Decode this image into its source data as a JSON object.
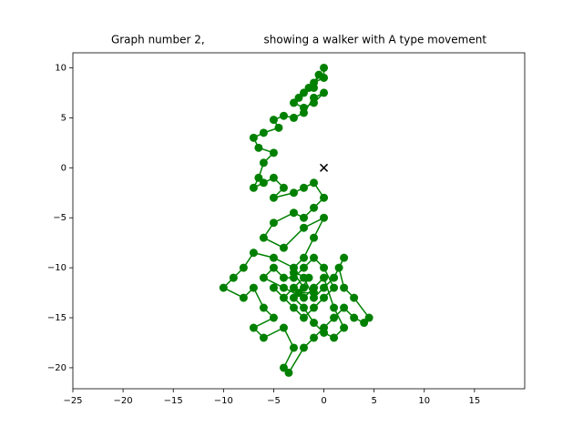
{
  "chart_data": {
    "type": "scatter",
    "title": "Graph number 2,                 showing a walker with A type movement",
    "xlim": [
      -25,
      20
    ],
    "ylim": [
      -22.1,
      11.5
    ],
    "xticks": [
      {
        "value": -25,
        "label": "−25"
      },
      {
        "value": -20,
        "label": "−20"
      },
      {
        "value": -15,
        "label": "−15"
      },
      {
        "value": -10,
        "label": "−10"
      },
      {
        "value": -5,
        "label": "−5"
      },
      0,
      5,
      10,
      15
    ],
    "yticks": [
      {
        "value": -20,
        "label": "−20"
      },
      {
        "value": -15,
        "label": "−15"
      },
      {
        "value": -10,
        "label": "−10"
      },
      {
        "value": -5,
        "label": "−5"
      },
      0,
      5,
      10
    ],
    "series": [
      {
        "color": "#008000",
        "marker": "o",
        "line": true,
        "x": [
          0,
          0,
          -1,
          -0.5,
          -1,
          -2,
          -1.5,
          -2.5,
          -3,
          -2,
          -1,
          0,
          -1,
          -2,
          -3,
          -4,
          -5,
          -4.5,
          -6,
          -7,
          -6.5,
          -5,
          -6,
          -6.5,
          -7,
          -6,
          -5,
          -4,
          -5,
          -3,
          -2,
          -1,
          0,
          -1,
          -2,
          -3,
          -5,
          -6,
          -4,
          -2,
          0,
          -1,
          -2,
          -3,
          -5,
          -7,
          -8,
          -9,
          -10,
          -8,
          -7,
          -6,
          -5,
          -7,
          -6,
          -4,
          -3,
          -4,
          -3.5,
          -2,
          -1,
          0,
          1,
          2,
          3,
          4,
          4.5,
          3,
          2,
          1.5,
          2,
          1,
          0,
          -1,
          -2,
          -3,
          -4,
          -5,
          -3,
          -2,
          -1,
          0,
          1,
          0,
          -1,
          -2,
          -3,
          -4,
          -5,
          -6,
          -4,
          -2,
          -1,
          0,
          1,
          2,
          1,
          0,
          -1,
          -2,
          -3,
          -2,
          -3,
          -1.5,
          -2.5,
          -1
        ],
        "y": [
          10,
          9,
          8.5,
          9.3,
          8,
          7.5,
          8,
          7,
          6.5,
          6,
          6.5,
          7.5,
          7,
          5.5,
          5,
          5.2,
          4.8,
          4,
          3.5,
          3,
          2,
          1.5,
          0.5,
          -1,
          -2,
          -1.5,
          -1,
          -2,
          -3,
          -2.5,
          -2,
          -1.5,
          -3,
          -4,
          -5,
          -4.5,
          -5.5,
          -7,
          -8,
          -6,
          -5,
          -7,
          -9,
          -10,
          -9,
          -8.5,
          -10,
          -11,
          -12,
          -13,
          -12,
          -14,
          -15,
          -16,
          -17,
          -16,
          -18,
          -20,
          -20.5,
          -18,
          -17,
          -16,
          -15,
          -14,
          -15,
          -15.5,
          -15,
          -13,
          -12,
          -10,
          -9,
          -11,
          -12,
          -13,
          -11,
          -12,
          -13,
          -12,
          -14,
          -15,
          -14,
          -13,
          -12,
          -10,
          -9,
          -10,
          -11,
          -11,
          -10,
          -11,
          -12,
          -13,
          -12,
          -11,
          -14,
          -16,
          -17,
          -16.5,
          -15.5,
          -14,
          -13,
          -12,
          -10.5,
          -11,
          -12.5,
          -12.5
        ]
      },
      {
        "color": "#000000",
        "marker": "x",
        "line": false,
        "x": [
          0
        ],
        "y": [
          0
        ]
      }
    ]
  }
}
